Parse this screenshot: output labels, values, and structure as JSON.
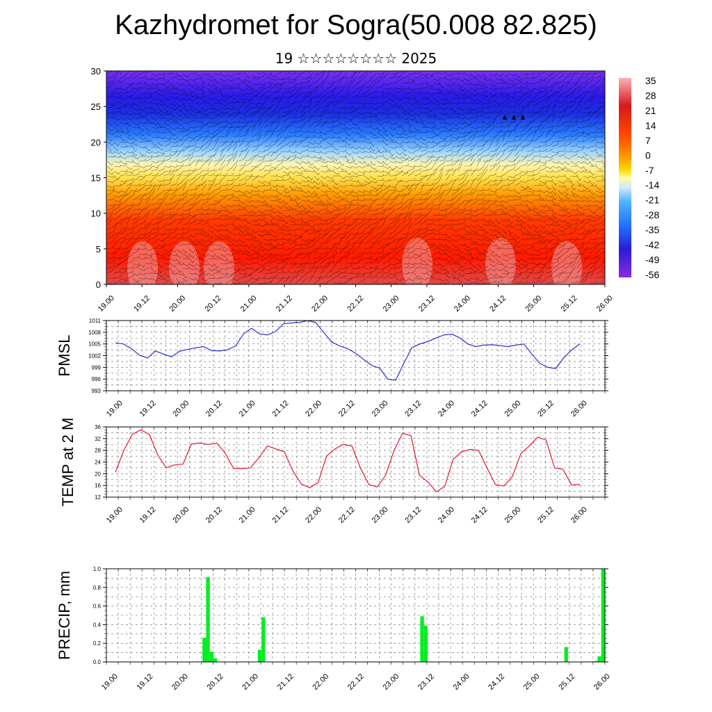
{
  "title": "Kazhydromet for Sogra(50.008 82.825)",
  "subtitle": "19 ☆☆☆☆☆☆☆☆ 2025",
  "x_tick_labels": [
    "19.00",
    "19.12",
    "20.00",
    "20.12",
    "21.00",
    "21.12",
    "22.00",
    "22.12",
    "23.00",
    "23.12",
    "24.00",
    "24.12",
    "25.00",
    "25.12",
    "26.00"
  ],
  "chart_data": [
    {
      "type": "heatmap",
      "title": "",
      "ylabel": "",
      "ylim": [
        0,
        30
      ],
      "y_ticks": [
        "0",
        "5",
        "10",
        "15",
        "20",
        "25",
        "30"
      ],
      "colorbar_labels": [
        "35",
        "28",
        "21",
        "14",
        "7",
        "0",
        "-7",
        "-14",
        "-21",
        "-28",
        "-35",
        "-42",
        "-49",
        "-56"
      ],
      "colors": [
        "#f6b4b4",
        "#d7191c",
        "#ff4500",
        "#ff8c00",
        "#ffd700",
        "#ffffa0",
        "#cfe8ff",
        "#4fb3ff",
        "#1f6bff",
        "#2a1bd6",
        "#6a1fe0",
        "#8a2be2"
      ],
      "note_values_by_level": {
        "0": 30,
        "5": 25,
        "10": 20,
        "15": 5,
        "20": -20,
        "25": -50,
        "30": -45
      }
    },
    {
      "type": "line",
      "ylabel": "PMSL",
      "ylim": [
        993,
        1011
      ],
      "y_ticks": [
        "993",
        "996",
        "999",
        "1002",
        "1005",
        "1008",
        "1011"
      ],
      "color": "#1a1ad6",
      "series": [
        {
          "values": [
            1005.3,
            1005.0,
            1003.8,
            1002.1,
            1001.4,
            1003.2,
            1002.4,
            1001.7,
            1003.1,
            1003.6,
            1004.0,
            1004.3,
            1003.3,
            1003.2,
            1003.5,
            1004.5,
            1007.6,
            1009.0,
            1007.6,
            1007.3,
            1008.2,
            1010.2,
            1010.4,
            1010.5,
            1011.0,
            1010.5,
            1008.0,
            1005.5,
            1004.5,
            1003.8,
            1002.6,
            1001.0,
            999.5,
            998.8,
            996.0,
            995.7,
            1000.0,
            1004.0,
            1005.0,
            1005.6,
            1006.5,
            1007.3,
            1007.5,
            1006.6,
            1005.0,
            1004.3,
            1004.7,
            1004.8,
            1004.6,
            1004.3,
            1004.7,
            1005.0,
            1002.4,
            1000.0,
            999.0,
            998.7,
            1001.5,
            1003.5,
            1005.0
          ]
        }
      ]
    },
    {
      "type": "line",
      "ylabel": "TEMP at 2 M",
      "ylim": [
        12,
        36
      ],
      "y_ticks": [
        "12",
        "16",
        "20",
        "24",
        "28",
        "32",
        "36"
      ],
      "color": "#e8001c",
      "series": [
        {
          "values": [
            20.5,
            28.0,
            33.5,
            35.0,
            33.5,
            26.5,
            22.0,
            23.0,
            23.3,
            30.2,
            30.5,
            30.0,
            30.5,
            27.0,
            21.8,
            21.8,
            22.0,
            25.5,
            29.5,
            28.5,
            27.5,
            21.0,
            16.5,
            15.2,
            17.0,
            26.0,
            28.5,
            30.0,
            29.5,
            22.0,
            16.3,
            15.5,
            19.5,
            28.0,
            33.8,
            33.0,
            19.5,
            17.2,
            13.8,
            15.7,
            25.0,
            27.5,
            28.3,
            28.0,
            22.0,
            16.3,
            15.8,
            19.0,
            26.8,
            29.5,
            32.5,
            31.5,
            22.0,
            21.5,
            16.2,
            16.3
          ]
        }
      ]
    },
    {
      "type": "bar",
      "ylabel": "PRECIP, mm",
      "ylim": [
        0,
        1
      ],
      "y_ticks": [
        "0.0",
        "0.2",
        "0.4",
        "0.6",
        "0.8",
        "1.0"
      ],
      "color": "#00ee22",
      "values": [
        0,
        0,
        0,
        0,
        0,
        0,
        0,
        0,
        0,
        0,
        0,
        0,
        0,
        0,
        0,
        0,
        0,
        0,
        0,
        0,
        0,
        0,
        0,
        0,
        0,
        0,
        0.26,
        0.91,
        0.11,
        0.04,
        0,
        0,
        0,
        0,
        0,
        0,
        0,
        0,
        0,
        0,
        0,
        0.13,
        0.48,
        0,
        0,
        0,
        0,
        0,
        0,
        0,
        0,
        0,
        0,
        0,
        0,
        0,
        0,
        0,
        0,
        0,
        0,
        0,
        0,
        0,
        0,
        0,
        0,
        0,
        0,
        0,
        0,
        0,
        0,
        0,
        0,
        0,
        0,
        0,
        0,
        0,
        0,
        0,
        0,
        0,
        0,
        0.49,
        0.39,
        0,
        0,
        0,
        0,
        0,
        0,
        0,
        0,
        0,
        0,
        0,
        0,
        0,
        0,
        0,
        0,
        0,
        0,
        0,
        0,
        0,
        0,
        0,
        0,
        0,
        0,
        0,
        0,
        0,
        0,
        0,
        0,
        0,
        0,
        0,
        0,
        0,
        0.16,
        0,
        0,
        0,
        0,
        0,
        0,
        0,
        0.01,
        0.06,
        1.0
      ]
    }
  ]
}
